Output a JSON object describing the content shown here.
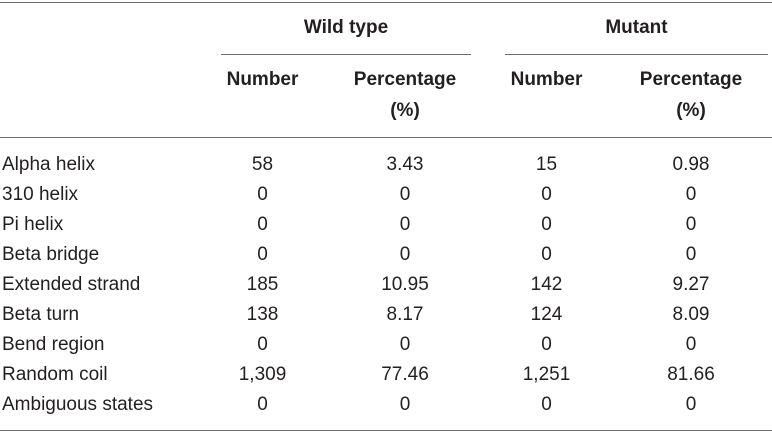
{
  "table": {
    "groups": [
      {
        "label": "Wild type"
      },
      {
        "label": "Mutant"
      }
    ],
    "subheaders": {
      "number": "Number",
      "percentage_line1": "Percentage",
      "percentage_line2": "(%)"
    },
    "rows": [
      {
        "label": "Alpha helix",
        "wt_number": "58",
        "wt_pct": "3.43",
        "mut_number": "15",
        "mut_pct": "0.98"
      },
      {
        "label": "310 helix",
        "wt_number": "0",
        "wt_pct": "0",
        "mut_number": "0",
        "mut_pct": "0"
      },
      {
        "label": "Pi helix",
        "wt_number": "0",
        "wt_pct": "0",
        "mut_number": "0",
        "mut_pct": "0"
      },
      {
        "label": "Beta bridge",
        "wt_number": "0",
        "wt_pct": "0",
        "mut_number": "0",
        "mut_pct": "0"
      },
      {
        "label": "Extended strand",
        "wt_number": "185",
        "wt_pct": "10.95",
        "mut_number": "142",
        "mut_pct": "9.27"
      },
      {
        "label": "Beta turn",
        "wt_number": "138",
        "wt_pct": "8.17",
        "mut_number": "124",
        "mut_pct": "8.09"
      },
      {
        "label": "Bend region",
        "wt_number": "0",
        "wt_pct": "0",
        "mut_number": "0",
        "mut_pct": "0"
      },
      {
        "label": "Random coil",
        "wt_number": "1,309",
        "wt_pct": "77.46",
        "mut_number": "1,251",
        "mut_pct": "81.66"
      },
      {
        "label": "Ambiguous states",
        "wt_number": "0",
        "wt_pct": "0",
        "mut_number": "0",
        "mut_pct": "0"
      }
    ]
  }
}
